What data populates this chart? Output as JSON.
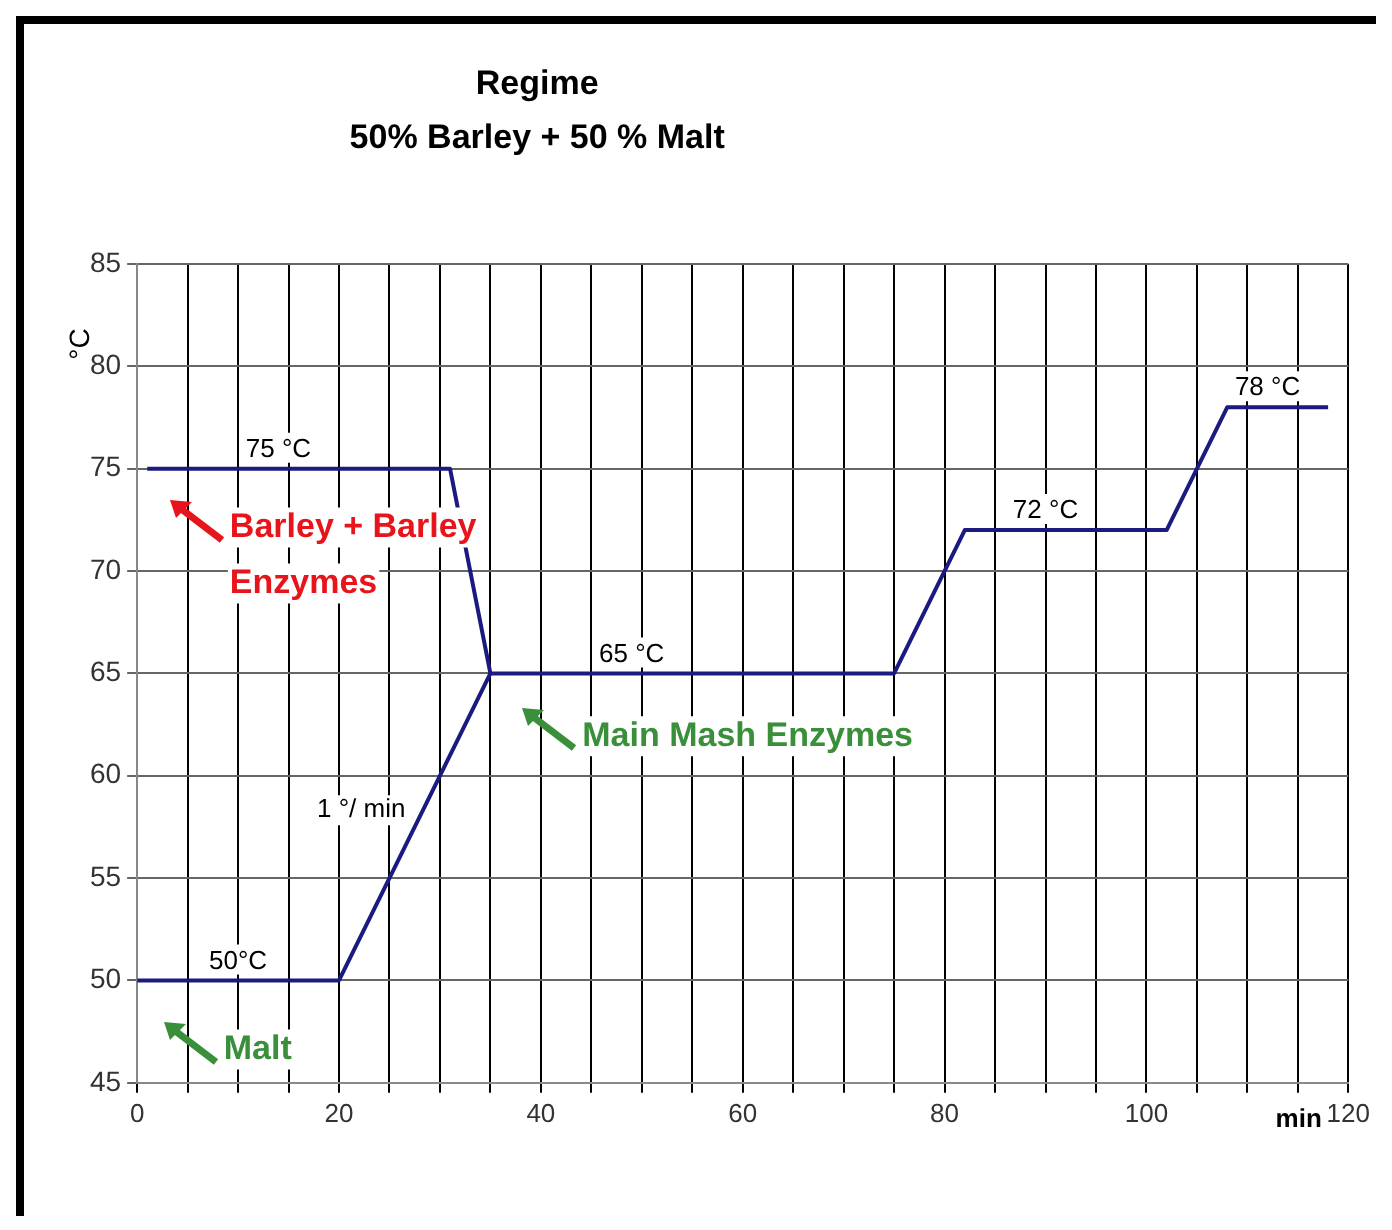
{
  "chart_data": {
    "type": "line",
    "title": "Regime",
    "subtitle": "50% Barley + 50 % Malt",
    "xlabel": "min",
    "ylabel": "°C",
    "series": [
      {
        "color": "#1a1a80",
        "x": [
          1,
          31,
          35,
          75,
          82,
          102,
          108,
          118
        ],
        "values": [
          75,
          75,
          65,
          65,
          72,
          72,
          78,
          78
        ]
      },
      {
        "color": "#1a1a80",
        "x": [
          0,
          20,
          35
        ],
        "values": [
          50,
          50,
          65
        ]
      }
    ],
    "xlim": [
      0,
      120
    ],
    "xticks": [
      0,
      {
        "value": 5,
        "label": null
      },
      {
        "value": 10,
        "label": null
      },
      {
        "value": 15,
        "label": null
      },
      20,
      {
        "value": 25,
        "label": null
      },
      {
        "value": 30,
        "label": null
      },
      {
        "value": 35,
        "label": null
      },
      40,
      {
        "value": 45,
        "label": null
      },
      {
        "value": 50,
        "label": null
      },
      {
        "value": 55,
        "label": null
      },
      60,
      {
        "value": 65,
        "label": null
      },
      {
        "value": 70,
        "label": null
      },
      {
        "value": 75,
        "label": null
      },
      80,
      {
        "value": 85,
        "label": null
      },
      {
        "value": 90,
        "label": null
      },
      {
        "value": 95,
        "label": null
      },
      100,
      {
        "value": 105,
        "label": null
      },
      {
        "value": 110,
        "label": null
      },
      {
        "value": 115,
        "label": null
      },
      120
    ],
    "ylim": [
      45,
      85
    ],
    "yticks": [
      45,
      50,
      55,
      60,
      65,
      70,
      75,
      80,
      85
    ],
    "grid": true,
    "legend": false,
    "marker": "none",
    "line_style": "solid",
    "annotations": [
      {
        "text": "75 °C",
        "x": 14,
        "y": 75
      },
      {
        "text": "50°C",
        "x": 10,
        "y": 50
      },
      {
        "text": "65 °C",
        "x": 49,
        "y": 65
      },
      {
        "text": "72 °C",
        "x": 90,
        "y": 72
      },
      {
        "text": "78 °C",
        "x": 112,
        "y": 78
      },
      "1 °/ min",
      "Barley + Barley Enzymes",
      "Main Mash Enzymes",
      "Malt"
    ]
  }
}
